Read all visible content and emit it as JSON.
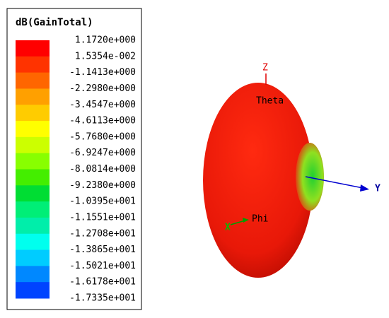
{
  "legend": {
    "title": "dB(GainTotal)",
    "labels": [
      "1.1720e+000",
      "1.5354e-002",
      "-1.1413e+000",
      "-2.2980e+000",
      "-3.4547e+000",
      "-4.6113e+000",
      "-5.7680e+000",
      "-6.9247e+000",
      "-8.0814e+000",
      "-9.2380e+000",
      "-1.0395e+001",
      "-1.1551e+001",
      "-1.2708e+001",
      "-1.3865e+001",
      "-1.5021e+001",
      "-1.6178e+001",
      "-1.7335e+001"
    ]
  },
  "axes": {
    "z": "Z",
    "theta": "Theta",
    "y": "Y",
    "phi": "Phi",
    "x": "X"
  }
}
